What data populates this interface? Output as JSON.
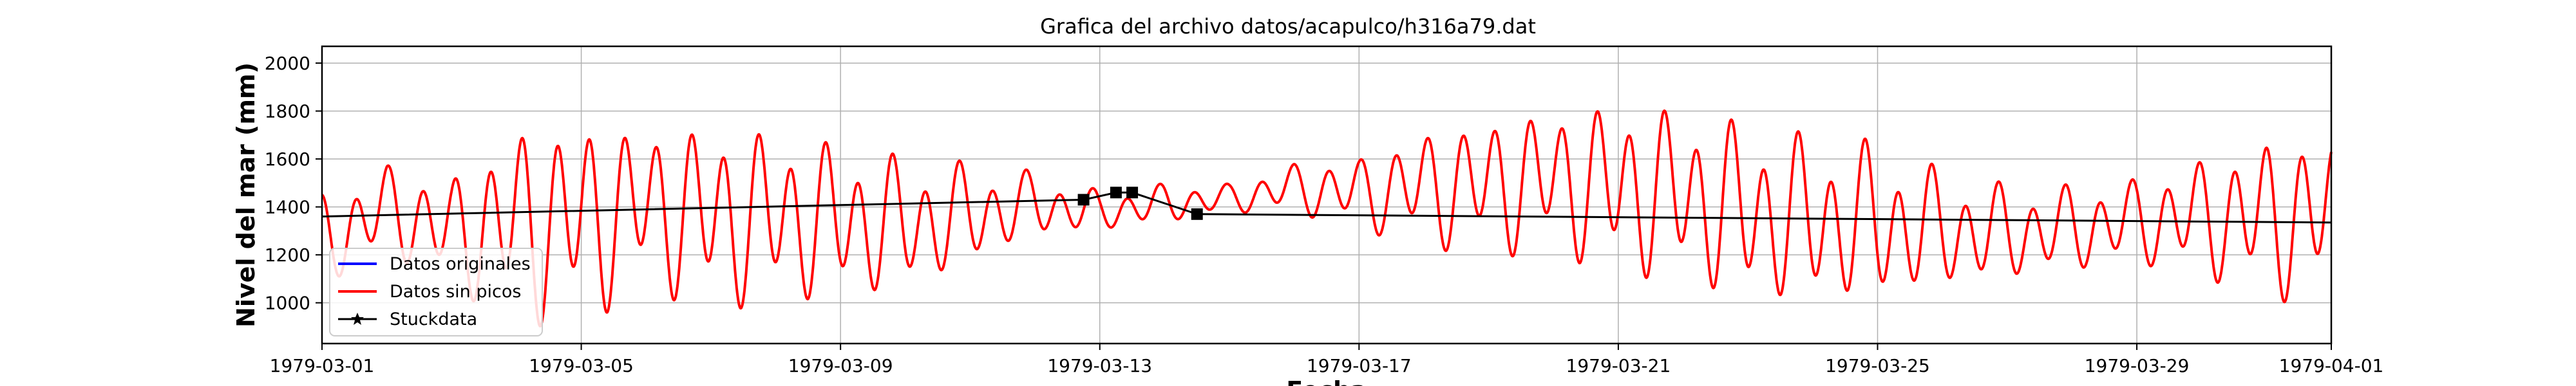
{
  "chart_data": {
    "type": "line",
    "title": "Grafica del archivo datos/acapulco/h316a79.dat",
    "xlabel": "Fecha",
    "ylabel": "Nivel del mar (mm)",
    "xlim": [
      "1979-03-01",
      "1979-04-01"
    ],
    "ylim": [
      830,
      2070
    ],
    "x_ticks": [
      "1979-03-01",
      "1979-03-05",
      "1979-03-09",
      "1979-03-13",
      "1979-03-17",
      "1979-03-21",
      "1979-03-25",
      "1979-03-29",
      "1979-04-01"
    ],
    "y_ticks": [
      1000,
      1200,
      1400,
      1600,
      1800,
      2000
    ],
    "grid": true,
    "legend": {
      "position": "lower-left",
      "entries": [
        {
          "label": "Datos originales",
          "color": "#0000ff"
        },
        {
          "label": "Datos sin picos",
          "color": "#ff0000"
        },
        {
          "label": "Stuckdata",
          "color": "#000000"
        }
      ]
    },
    "series": [
      {
        "name": "Datos originales",
        "color": "#0000ff",
        "note": "hidden beneath Datos sin picos",
        "x": [],
        "y": []
      },
      {
        "name": "Datos sin picos",
        "color": "#ff0000",
        "description": "semi-diurnal tide, approx two cycles per day",
        "x": [
          "1979-03-01",
          "1979-03-02",
          "1979-03-03",
          "1979-03-04",
          "1979-03-05",
          "1979-03-06",
          "1979-03-07",
          "1979-03-08",
          "1979-03-09",
          "1979-03-10",
          "1979-03-11",
          "1979-03-12",
          "1979-03-13",
          "1979-03-14",
          "1979-03-15",
          "1979-03-16",
          "1979-03-17",
          "1979-03-18",
          "1979-03-19",
          "1979-03-20",
          "1979-03-21",
          "1979-03-22",
          "1979-03-23",
          "1979-03-24",
          "1979-03-25",
          "1979-03-26",
          "1979-03-27",
          "1979-03-28",
          "1979-03-29",
          "1979-03-30",
          "1979-03-31",
          "1979-04-01"
        ],
        "high_tide": [
          1460,
          1590,
          1540,
          1770,
          1800,
          1770,
          1770,
          1740,
          1680,
          1620,
          1590,
          1550,
          1470,
          1500,
          1500,
          1590,
          1620,
          1740,
          1800,
          1840,
          1860,
          1830,
          1770,
          1710,
          1680,
          1560,
          1500,
          1500,
          1530,
          1620,
          1710,
          1740
        ],
        "low_tide": [
          1050,
          1200,
          1050,
          900,
          900,
          1050,
          950,
          980,
          1000,
          1030,
          1140,
          1270,
          1290,
          1330,
          1370,
          1370,
          1300,
          1230,
          1190,
          1200,
          1100,
          1070,
          980,
          980,
          980,
          1040,
          1080,
          1120,
          1150,
          1100,
          1000,
          1000
        ]
      },
      {
        "name": "Stuckdata",
        "color": "#000000",
        "x": [
          "1979-03-01",
          "1979-03-12 18:00",
          "1979-03-13 06:00",
          "1979-03-13 12:00",
          "1979-03-14 12:00",
          "1979-04-01"
        ],
        "y": [
          1360,
          1430,
          1460,
          1460,
          1370,
          1335
        ],
        "markers": [
          "1979-03-12 18:00",
          "1979-03-13 06:00",
          "1979-03-13 12:00",
          "1979-03-14 12:00"
        ]
      }
    ]
  }
}
